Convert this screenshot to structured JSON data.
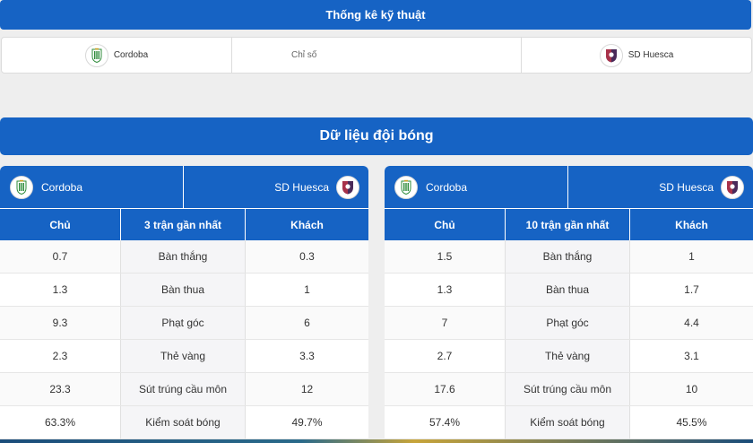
{
  "tech": {
    "title": "Thống kê kỹ thuật",
    "home_team": "Cordoba",
    "middle_label": "Chỉ số",
    "away_team": "SD Huesca"
  },
  "section": {
    "title": "Dữ liệu đội bóng"
  },
  "panels": [
    {
      "home_team": "Cordoba",
      "away_team": "SD Huesca",
      "headers": {
        "home": "Chủ",
        "middle": "3 trận gần nhất",
        "away": "Khách"
      },
      "rows": [
        {
          "home": "0.7",
          "label": "Bàn thắng",
          "away": "0.3"
        },
        {
          "home": "1.3",
          "label": "Bàn thua",
          "away": "1"
        },
        {
          "home": "9.3",
          "label": "Phạt góc",
          "away": "6"
        },
        {
          "home": "2.3",
          "label": "Thẻ vàng",
          "away": "3.3"
        },
        {
          "home": "23.3",
          "label": "Sút trúng cầu môn",
          "away": "12"
        },
        {
          "home": "63.3%",
          "label": "Kiểm soát bóng",
          "away": "49.7%"
        }
      ]
    },
    {
      "home_team": "Cordoba",
      "away_team": "SD Huesca",
      "headers": {
        "home": "Chủ",
        "middle": "10 trận gần nhất",
        "away": "Khách"
      },
      "rows": [
        {
          "home": "1.5",
          "label": "Bàn thắng",
          "away": "1"
        },
        {
          "home": "1.3",
          "label": "Bàn thua",
          "away": "1.7"
        },
        {
          "home": "7",
          "label": "Phạt góc",
          "away": "4.4"
        },
        {
          "home": "2.7",
          "label": "Thẻ vàng",
          "away": "3.1"
        },
        {
          "home": "17.6",
          "label": "Sút trúng cầu môn",
          "away": "10"
        },
        {
          "home": "57.4%",
          "label": "Kiểm soát bóng",
          "away": "45.5%"
        }
      ]
    }
  ],
  "icons": {
    "home_logo": "cordoba-crest-icon",
    "away_logo": "huesca-crest-icon"
  },
  "colors": {
    "accent": "#1663c4",
    "home_crest": "#2e8b3a",
    "away_crest": "#4a2a5a"
  }
}
